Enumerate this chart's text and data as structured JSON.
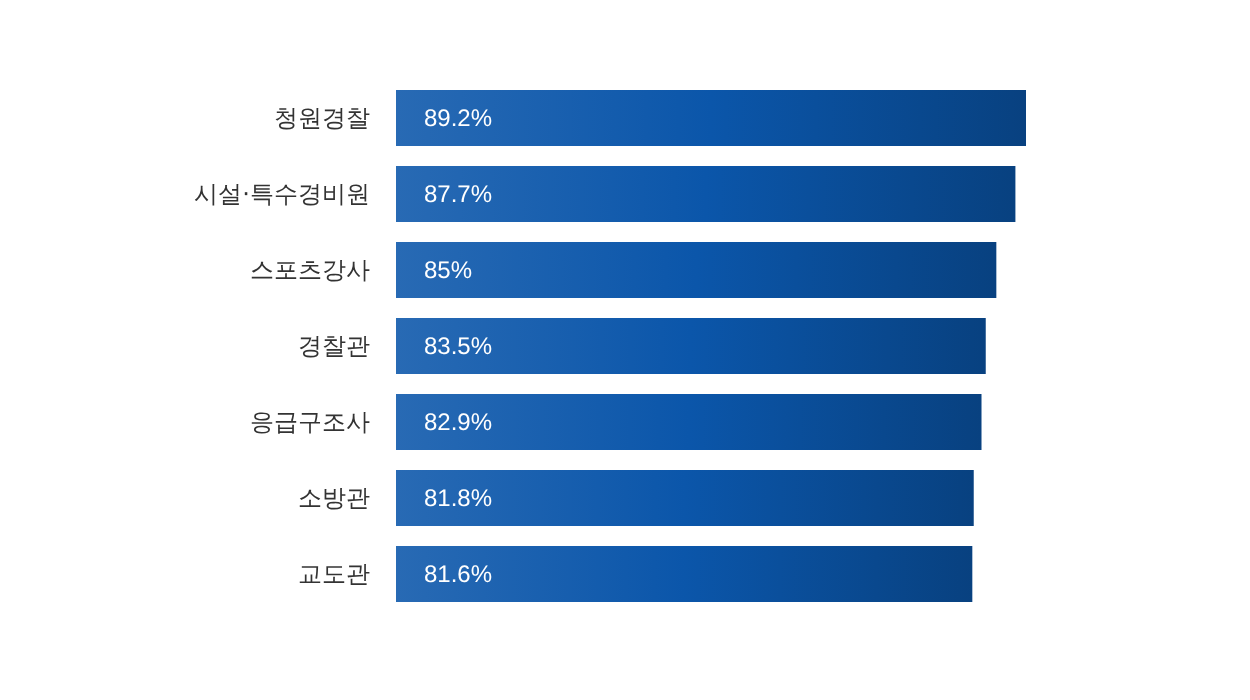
{
  "chart_data": {
    "type": "bar",
    "orientation": "horizontal",
    "categories": [
      "청원경찰",
      "시설·특수경비원",
      "스포츠강사",
      "경찰관",
      "응급구조사",
      "소방관",
      "교도관"
    ],
    "values": [
      89.2,
      87.7,
      85,
      83.5,
      82.9,
      81.8,
      81.6
    ],
    "value_labels": [
      "89.2%",
      "87.7%",
      "85%",
      "83.5%",
      "82.9%",
      "81.8%",
      "81.6%"
    ],
    "color": "#0b56aa"
  }
}
